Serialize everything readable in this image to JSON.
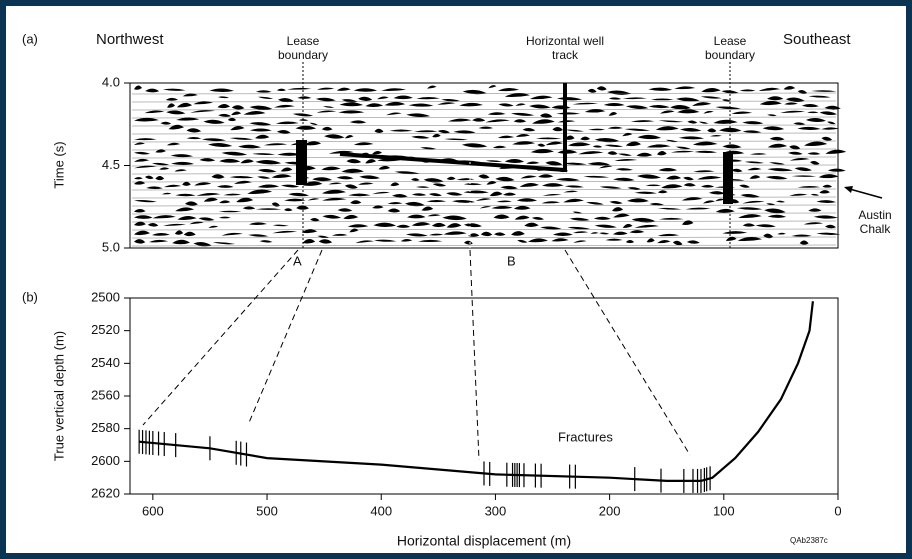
{
  "chart_data": [
    {
      "type": "seismic",
      "panel_label": "(a)",
      "ylabel": "Time (s)",
      "ylim": [
        4.0,
        5.0
      ],
      "yticks": [
        {
          "value": 4.0,
          "label": "4.0"
        },
        4.5,
        {
          "value": 5.0,
          "label": "5.0"
        }
      ],
      "annotations": {
        "left": "Northwest",
        "right": "Southeast",
        "lease_left": "Lease boundary",
        "well": "Horizontal well track",
        "lease_right": "Lease boundary",
        "horizon": "Austin Chalk",
        "point_a": "A",
        "point_b": "B"
      }
    },
    {
      "type": "line",
      "panel_label": "(b)",
      "xlabel": "Horizontal displacement (m)",
      "ylabel": "True vertical depth (m)",
      "xlim": [
        620,
        0
      ],
      "xticks": [
        600,
        500,
        400,
        300,
        200,
        100,
        0
      ],
      "ylim": [
        2500,
        2620
      ],
      "yticks": [
        2500,
        2520,
        2540,
        2560,
        2580,
        2600,
        2620
      ],
      "x": [
        612,
        550,
        500,
        400,
        300,
        200,
        150,
        120,
        110,
        90,
        70,
        50,
        35,
        25,
        22
      ],
      "values": [
        2588,
        2592,
        2598,
        2602,
        2608,
        2610,
        2612,
        2612,
        2610,
        2598,
        2582,
        2562,
        2540,
        2520,
        2502
      ],
      "color": "#000000",
      "fractures_label": "Fractures",
      "fractures_x": [
        612,
        609,
        606,
        603,
        600,
        595,
        590,
        580,
        550,
        527,
        523,
        518,
        310,
        305,
        290,
        285,
        283,
        281,
        279,
        275,
        265,
        260,
        235,
        230,
        178,
        155,
        135,
        127,
        123,
        120,
        117,
        115,
        112
      ],
      "figure_code": "QAb2387c"
    }
  ]
}
